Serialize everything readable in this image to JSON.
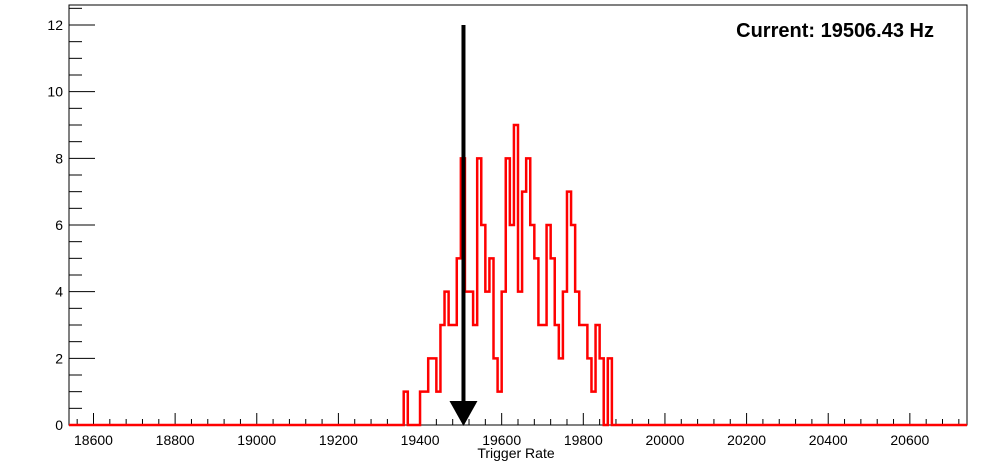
{
  "chart_data": {
    "type": "histogram",
    "title": "",
    "xlabel": "Trigger Rate",
    "ylabel": "",
    "xlim": [
      18540,
      20740
    ],
    "ylim": [
      0,
      12.6
    ],
    "x_ticks": [
      18600,
      18800,
      19000,
      19200,
      19400,
      19600,
      19800,
      20000,
      20200,
      20400,
      20600
    ],
    "y_ticks": [
      0,
      2,
      4,
      6,
      8,
      10,
      12
    ],
    "grid": false,
    "legend": "none",
    "bin_width": 10,
    "bins_x": [
      19365,
      19375,
      19385,
      19395,
      19405,
      19415,
      19425,
      19435,
      19445,
      19455,
      19465,
      19475,
      19485,
      19495,
      19505,
      19515,
      19525,
      19535,
      19545,
      19555,
      19565,
      19575,
      19585,
      19595,
      19605,
      19615,
      19625,
      19635,
      19645,
      19655,
      19665,
      19675,
      19685,
      19695,
      19705,
      19715,
      19725,
      19735,
      19745,
      19755,
      19765,
      19775,
      19785,
      19795,
      19805,
      19815,
      19825,
      19835,
      19845,
      19855,
      19865
    ],
    "counts": [
      1,
      0,
      0,
      0,
      1,
      1,
      2,
      2,
      1,
      3,
      4,
      3,
      3,
      5,
      8,
      4,
      4,
      3,
      8,
      6,
      4,
      5,
      2,
      1,
      4,
      8,
      6,
      9,
      4,
      7,
      8,
      6,
      5,
      3,
      3,
      6,
      5,
      3,
      2,
      4,
      7,
      6,
      4,
      3,
      3,
      2,
      1,
      3,
      2,
      0,
      2
    ],
    "color": "#ff0000",
    "marker": {
      "x": 19506.43,
      "color": "#000000"
    },
    "annotation": "Current: 19506.43 Hz"
  }
}
